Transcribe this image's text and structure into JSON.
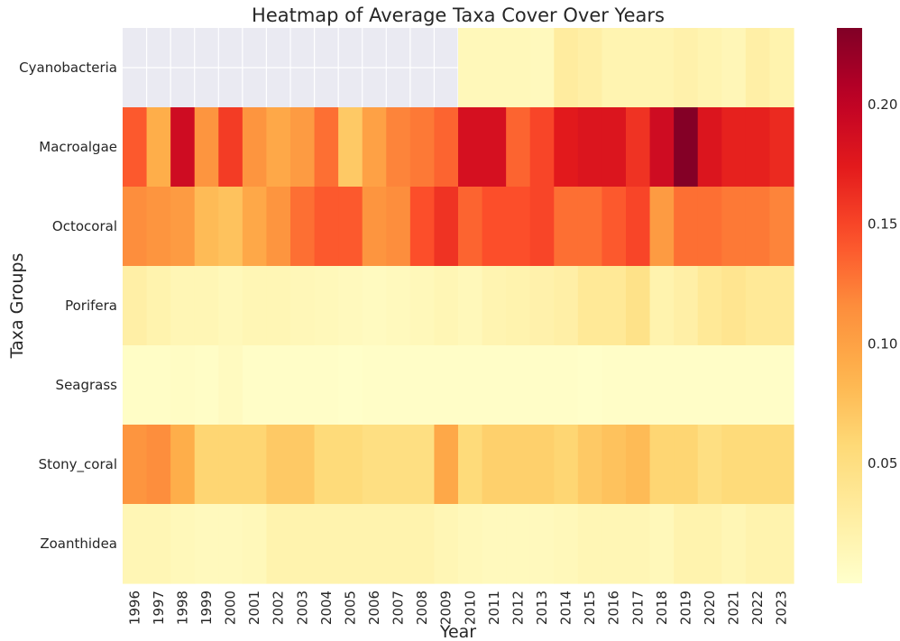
{
  "chart_data": {
    "type": "heatmap",
    "title": "Heatmap of Average Taxa Cover Over Years",
    "xlabel": "Year",
    "ylabel": "Taxa Groups",
    "x": [
      "1996",
      "1997",
      "1998",
      "1999",
      "2000",
      "2001",
      "2002",
      "2003",
      "2004",
      "2005",
      "2006",
      "2007",
      "2008",
      "2009",
      "2010",
      "2011",
      "2012",
      "2013",
      "2014",
      "2015",
      "2016",
      "2017",
      "2018",
      "2019",
      "2020",
      "2021",
      "2022",
      "2023"
    ],
    "y": [
      "Cyanobacteria",
      "Macroalgae",
      "Octocoral",
      "Porifera",
      "Seagrass",
      "Stony_coral",
      "Zoanthidea"
    ],
    "values": [
      [
        null,
        null,
        null,
        null,
        null,
        null,
        null,
        null,
        null,
        null,
        null,
        null,
        null,
        null,
        0.012,
        0.012,
        0.012,
        0.01,
        0.03,
        0.025,
        0.018,
        0.018,
        0.018,
        0.022,
        0.018,
        0.014,
        0.025,
        0.02
      ],
      [
        0.14,
        0.09,
        0.19,
        0.11,
        0.155,
        0.11,
        0.095,
        0.105,
        0.13,
        0.07,
        0.1,
        0.12,
        0.125,
        0.135,
        0.185,
        0.185,
        0.135,
        0.15,
        0.175,
        0.18,
        0.18,
        0.16,
        0.19,
        0.23,
        0.18,
        0.17,
        0.17,
        0.165
      ],
      [
        0.115,
        0.11,
        0.105,
        0.08,
        0.075,
        0.095,
        0.11,
        0.13,
        0.14,
        0.14,
        0.11,
        0.115,
        0.145,
        0.16,
        0.135,
        0.145,
        0.145,
        0.15,
        0.13,
        0.13,
        0.14,
        0.15,
        0.105,
        0.13,
        0.13,
        0.125,
        0.125,
        0.12
      ],
      [
        0.025,
        0.02,
        0.015,
        0.015,
        0.012,
        0.015,
        0.015,
        0.013,
        0.012,
        0.01,
        0.008,
        0.01,
        0.012,
        0.015,
        0.012,
        0.018,
        0.02,
        0.022,
        0.025,
        0.035,
        0.035,
        0.045,
        0.02,
        0.025,
        0.035,
        0.04,
        0.035,
        0.035
      ],
      [
        0.004,
        0.004,
        0.005,
        0.004,
        0.008,
        0.003,
        0.003,
        0.003,
        0.003,
        0.002,
        0.003,
        0.003,
        0.003,
        0.003,
        0.003,
        0.003,
        0.003,
        0.003,
        0.003,
        0.002,
        0.003,
        0.003,
        0.003,
        0.003,
        0.003,
        0.003,
        0.003,
        0.003
      ],
      [
        0.11,
        0.115,
        0.09,
        0.06,
        0.06,
        0.06,
        0.07,
        0.07,
        0.055,
        0.055,
        0.05,
        0.05,
        0.05,
        0.095,
        0.055,
        0.065,
        0.065,
        0.065,
        0.06,
        0.07,
        0.075,
        0.08,
        0.06,
        0.06,
        0.05,
        0.055,
        0.055,
        0.055
      ],
      [
        0.015,
        0.015,
        0.012,
        0.01,
        0.01,
        0.012,
        0.02,
        0.02,
        0.02,
        0.02,
        0.02,
        0.02,
        0.02,
        0.015,
        0.012,
        0.01,
        0.01,
        0.01,
        0.012,
        0.015,
        0.015,
        0.015,
        0.012,
        0.02,
        0.02,
        0.015,
        0.02,
        0.02
      ]
    ],
    "colormap": "YlOrRd",
    "missing_color": "#eaeaf2",
    "colorbar": {
      "vmin": 0.0,
      "vmax": 0.232,
      "ticks": [
        0.05,
        0.1,
        0.15,
        0.2
      ],
      "tick_labels": [
        "0.05",
        "0.10",
        "0.15",
        "0.20"
      ]
    },
    "grid": true,
    "legend": "colorbar-right"
  }
}
